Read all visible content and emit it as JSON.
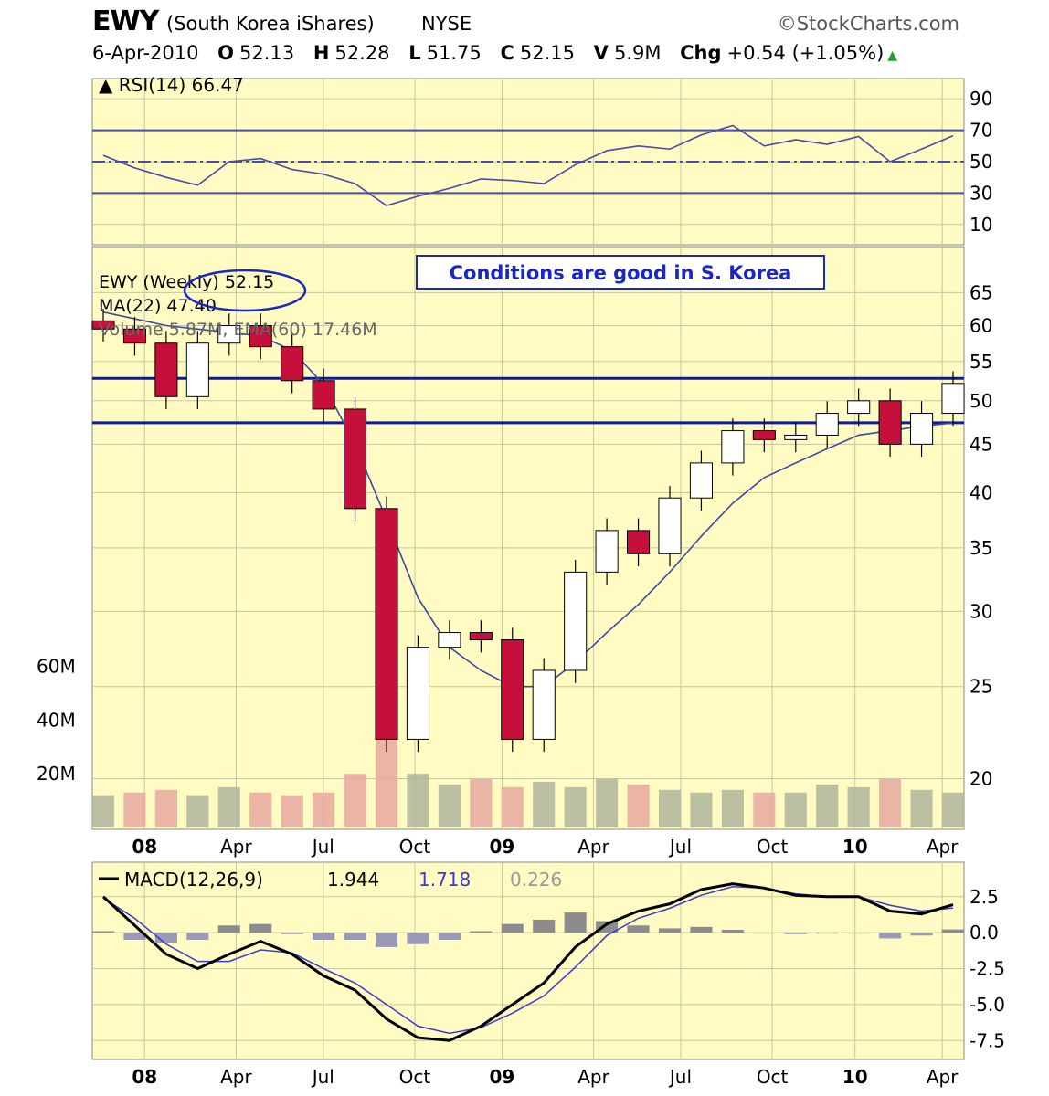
{
  "header": {
    "symbol": "EWY",
    "description": "(South Korea iShares)",
    "exchange": "NYSE",
    "source": "©StockCharts.com",
    "date": "6-Apr-2010",
    "open_label": "O",
    "open": "52.13",
    "high_label": "H",
    "high": "52.28",
    "low_label": "L",
    "low": "51.75",
    "close_label": "C",
    "close": "52.15",
    "volume_label": "V",
    "volume": "5.9M",
    "change_label": "Chg",
    "change": "+0.54 (+1.05%)"
  },
  "colors": {
    "panel_bg": "#fffbc2",
    "grid": "#c8c6a0",
    "up_candle": "#ffffff",
    "down_candle": "#c4103a",
    "ma": "#3a4aa0",
    "sr_line": "#0a1ab0",
    "rsi_line": "#4a4aa8",
    "vol_up": "#b0b49c",
    "vol_down": "#e8a8a0",
    "macd_line": "#000000",
    "signal_line": "#3a3ad0",
    "hist": "#9a9ab8"
  },
  "chart_data": [
    {
      "type": "line",
      "panel": "RSI",
      "legend": "RSI(14) 66.47",
      "y_ticks": [
        90,
        70,
        50,
        30,
        10
      ],
      "ylim": [
        0,
        100
      ],
      "reference_lines": [
        70,
        50,
        30
      ],
      "x": [
        "Jan-08",
        "Feb-08",
        "Mar-08",
        "Apr-08",
        "May-08",
        "Jun-08",
        "Jul-08",
        "Aug-08",
        "Sep-08",
        "Oct-08",
        "Nov-08",
        "Dec-08",
        "Jan-09",
        "Feb-09",
        "Mar-09",
        "Apr-09",
        "May-09",
        "Jun-09",
        "Jul-09",
        "Aug-09",
        "Sep-09",
        "Oct-09",
        "Nov-09",
        "Dec-09",
        "Jan-10",
        "Feb-10",
        "Mar-10",
        "Apr-10"
      ],
      "values": [
        54,
        46,
        40,
        35,
        50,
        52,
        45,
        42,
        36,
        22,
        28,
        33,
        39,
        38,
        36,
        48,
        57,
        60,
        58,
        67,
        73,
        60,
        64,
        61,
        66,
        50,
        58,
        66.47
      ]
    },
    {
      "type": "candlestick",
      "panel": "Price",
      "legend": [
        "EWY (Weekly) 52.15",
        "MA(22) 47.40",
        "Volume 5.87M, EMA(60) 17.46M"
      ],
      "annotation": "Conditions are good in S. Korea",
      "y_ticks": [
        65,
        60,
        55,
        50,
        45,
        40,
        35,
        30,
        25,
        20
      ],
      "ylim": [
        18,
        68
      ],
      "volume_ticks": [
        "60M",
        "40M",
        "20M"
      ],
      "support_resistance": [
        47.4,
        52.8
      ],
      "x_tick_labels": [
        "08",
        "Apr",
        "Jul",
        "Oct",
        "09",
        "Apr",
        "Jul",
        "Oct",
        "10",
        "Apr"
      ],
      "close": [
        59.5,
        57.5,
        50.5,
        57.5,
        60.0,
        57.0,
        52.5,
        49.0,
        38.5,
        22.0,
        27.5,
        28.5,
        28.0,
        22.0,
        26.0,
        33.0,
        36.5,
        34.5,
        39.5,
        43.0,
        46.5,
        45.5,
        46.0,
        48.5,
        50.0,
        45.0,
        48.5,
        52.15
      ],
      "ma22": [
        62.0,
        61.0,
        60.0,
        59.5,
        59.0,
        58.5,
        56.5,
        52.0,
        45.0,
        37.5,
        31.0,
        27.5,
        26.0,
        25.0,
        25.0,
        26.5,
        28.5,
        30.5,
        33.0,
        36.0,
        39.0,
        41.5,
        43.0,
        44.5,
        46.0,
        46.5,
        47.0,
        47.4
      ],
      "volume_m": [
        12,
        13,
        14,
        12,
        15,
        13,
        12,
        13,
        20,
        36,
        20,
        16,
        18,
        15,
        17,
        15,
        18,
        16,
        14,
        13,
        14,
        13,
        13,
        16,
        15,
        18,
        14,
        13
      ]
    },
    {
      "type": "line",
      "panel": "MACD",
      "legend": [
        "MACD(12,26,9)",
        "1.944",
        "1.718",
        "0.226"
      ],
      "y_ticks": [
        2.5,
        0.0,
        -2.5,
        -5.0,
        -7.5
      ],
      "ylim": [
        -8.5,
        4.2
      ],
      "x_tick_labels": [
        "08",
        "Apr",
        "Jul",
        "Oct",
        "09",
        "Apr",
        "Jul",
        "Oct",
        "10",
        "Apr"
      ],
      "series": [
        {
          "name": "MACD(12,26,9)",
          "values": [
            2.5,
            0.5,
            -1.5,
            -2.5,
            -1.5,
            -0.6,
            -1.5,
            -3.0,
            -4.0,
            -6.0,
            -7.3,
            -7.5,
            -6.5,
            -5.0,
            -3.5,
            -1.0,
            0.6,
            1.5,
            2.0,
            3.0,
            3.4,
            3.1,
            2.6,
            2.5,
            2.5,
            1.5,
            1.3,
            1.944
          ]
        },
        {
          "name": "signal",
          "values": [
            2.4,
            1.0,
            -0.8,
            -2.0,
            -2.0,
            -1.2,
            -1.4,
            -2.5,
            -3.5,
            -5.0,
            -6.5,
            -7.0,
            -6.6,
            -5.6,
            -4.4,
            -2.4,
            -0.2,
            1.0,
            1.7,
            2.6,
            3.2,
            3.1,
            2.7,
            2.5,
            2.5,
            1.9,
            1.5,
            1.718
          ]
        },
        {
          "name": "histogram",
          "values": [
            0.1,
            -0.5,
            -0.7,
            -0.5,
            0.5,
            0.6,
            -0.1,
            -0.5,
            -0.5,
            -1.0,
            -0.8,
            -0.5,
            0.1,
            0.6,
            0.9,
            1.4,
            0.8,
            0.5,
            0.3,
            0.4,
            0.2,
            0.0,
            -0.1,
            0.0,
            0.0,
            -0.4,
            -0.2,
            0.226
          ]
        }
      ]
    }
  ]
}
